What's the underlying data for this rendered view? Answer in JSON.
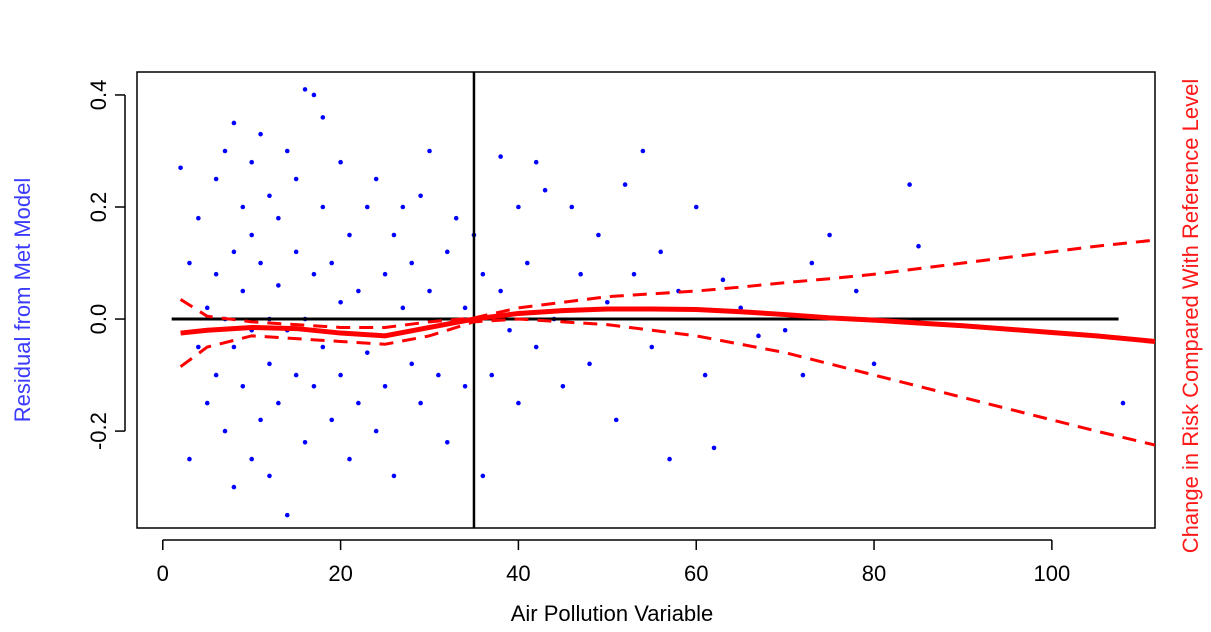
{
  "chart_data": {
    "type": "scatter",
    "x_label": "Air Pollution Variable",
    "y_label": "Residual from Met Model",
    "y2_label": "Change in Risk Compared With Reference Level",
    "xlim": [
      -2.9,
      111.6
    ],
    "ylim": [
      -0.373,
      0.441
    ],
    "xticks": [
      0,
      20,
      40,
      60,
      80,
      100
    ],
    "yticks": [
      -0.2,
      {
        "value": 0,
        "label": "0.0"
      },
      0.2,
      0.4
    ],
    "points": {
      "color": "#0000ff",
      "x": [
        2,
        3,
        3,
        4,
        4,
        5,
        5,
        6,
        6,
        6,
        7,
        7,
        7,
        8,
        8,
        8,
        8,
        9,
        9,
        9,
        10,
        10,
        10,
        10,
        11,
        11,
        11,
        12,
        12,
        12,
        12,
        13,
        13,
        13,
        14,
        14,
        14,
        15,
        15,
        15,
        16,
        16,
        16,
        17,
        17,
        17,
        18,
        18,
        18,
        19,
        19,
        20,
        20,
        20,
        21,
        21,
        22,
        22,
        23,
        23,
        24,
        24,
        25,
        25,
        26,
        26,
        27,
        27,
        28,
        28,
        29,
        29,
        30,
        30,
        31,
        32,
        32,
        33,
        34,
        34,
        35,
        36,
        36,
        37,
        38,
        38,
        39,
        40,
        40,
        41,
        42,
        42,
        43,
        44,
        45,
        46,
        47,
        48,
        49,
        50,
        51,
        52,
        53,
        54,
        55,
        56,
        57,
        58,
        60,
        61,
        62,
        63,
        65,
        67,
        70,
        72,
        73,
        75,
        78,
        80,
        84,
        85,
        108
      ],
      "y": [
        0.27,
        -0.25,
        0.1,
        -0.05,
        0.18,
        0.02,
        -0.15,
        0.25,
        -0.1,
        0.08,
        0.3,
        -0.2,
        0.0,
        0.12,
        -0.05,
        -0.3,
        0.35,
        0.2,
        -0.12,
        0.05,
        0.28,
        -0.25,
        -0.02,
        0.15,
        0.1,
        -0.18,
        0.33,
        0.0,
        -0.08,
        0.22,
        -0.28,
        0.06,
        -0.15,
        0.18,
        -0.02,
        0.3,
        -0.35,
        0.12,
        -0.1,
        0.25,
        0.0,
        -0.22,
        0.41,
        0.08,
        -0.12,
        0.4,
        0.2,
        -0.05,
        0.36,
        -0.18,
        0.1,
        0.03,
        -0.1,
        0.28,
        -0.25,
        0.15,
        0.05,
        -0.15,
        0.2,
        -0.06,
        0.25,
        -0.2,
        0.08,
        -0.12,
        0.15,
        -0.28,
        0.02,
        0.2,
        -0.08,
        0.1,
        0.22,
        -0.15,
        0.3,
        0.05,
        -0.1,
        0.12,
        -0.22,
        0.18,
        0.02,
        -0.12,
        0.15,
        -0.28,
        0.08,
        -0.1,
        0.29,
        0.05,
        -0.02,
        0.2,
        -0.15,
        0.1,
        0.28,
        -0.05,
        0.23,
        0.0,
        -0.12,
        0.2,
        0.08,
        -0.08,
        0.15,
        0.03,
        -0.18,
        0.24,
        0.08,
        0.3,
        -0.05,
        0.12,
        -0.25,
        0.05,
        0.2,
        -0.1,
        -0.23,
        0.07,
        0.02,
        -0.03,
        -0.02,
        -0.1,
        0.1,
        0.15,
        0.05,
        -0.08,
        0.24,
        0.13,
        -0.15
      ]
    },
    "reference_line": {
      "y": 0,
      "x": [
        1,
        107.5
      ],
      "color": "#000000"
    },
    "vertical_line": {
      "x": 35,
      "color": "#000000"
    },
    "curve_color": "#ff0000",
    "curve_x": [
      2,
      5,
      10,
      15,
      20,
      25,
      30,
      35,
      40,
      45,
      50,
      55,
      60,
      65,
      70,
      75,
      80,
      85,
      90,
      95,
      100,
      105,
      111.6
    ],
    "fit": [
      -0.025,
      -0.02,
      -0.015,
      -0.017,
      -0.025,
      -0.03,
      -0.015,
      0,
      0.01,
      0.015,
      0.018,
      0.018,
      0.017,
      0.013,
      0.008,
      0.002,
      -0.002,
      -0.007,
      -0.012,
      -0.018,
      -0.024,
      -0.03,
      -0.04
    ],
    "upper": [
      0.035,
      0.005,
      -0.005,
      -0.01,
      -0.015,
      -0.015,
      -0.005,
      0.002,
      0.02,
      0.03,
      0.04,
      0.045,
      0.05,
      0.057,
      0.065,
      0.072,
      0.08,
      0.09,
      0.1,
      0.11,
      0.12,
      0.13,
      0.141
    ],
    "lower": [
      -0.085,
      -0.05,
      -0.03,
      -0.035,
      -0.04,
      -0.045,
      -0.03,
      -0.005,
      0.0,
      -0.005,
      -0.01,
      -0.02,
      -0.03,
      -0.045,
      -0.06,
      -0.08,
      -0.1,
      -0.12,
      -0.14,
      -0.16,
      -0.18,
      -0.2,
      -0.225
    ]
  }
}
